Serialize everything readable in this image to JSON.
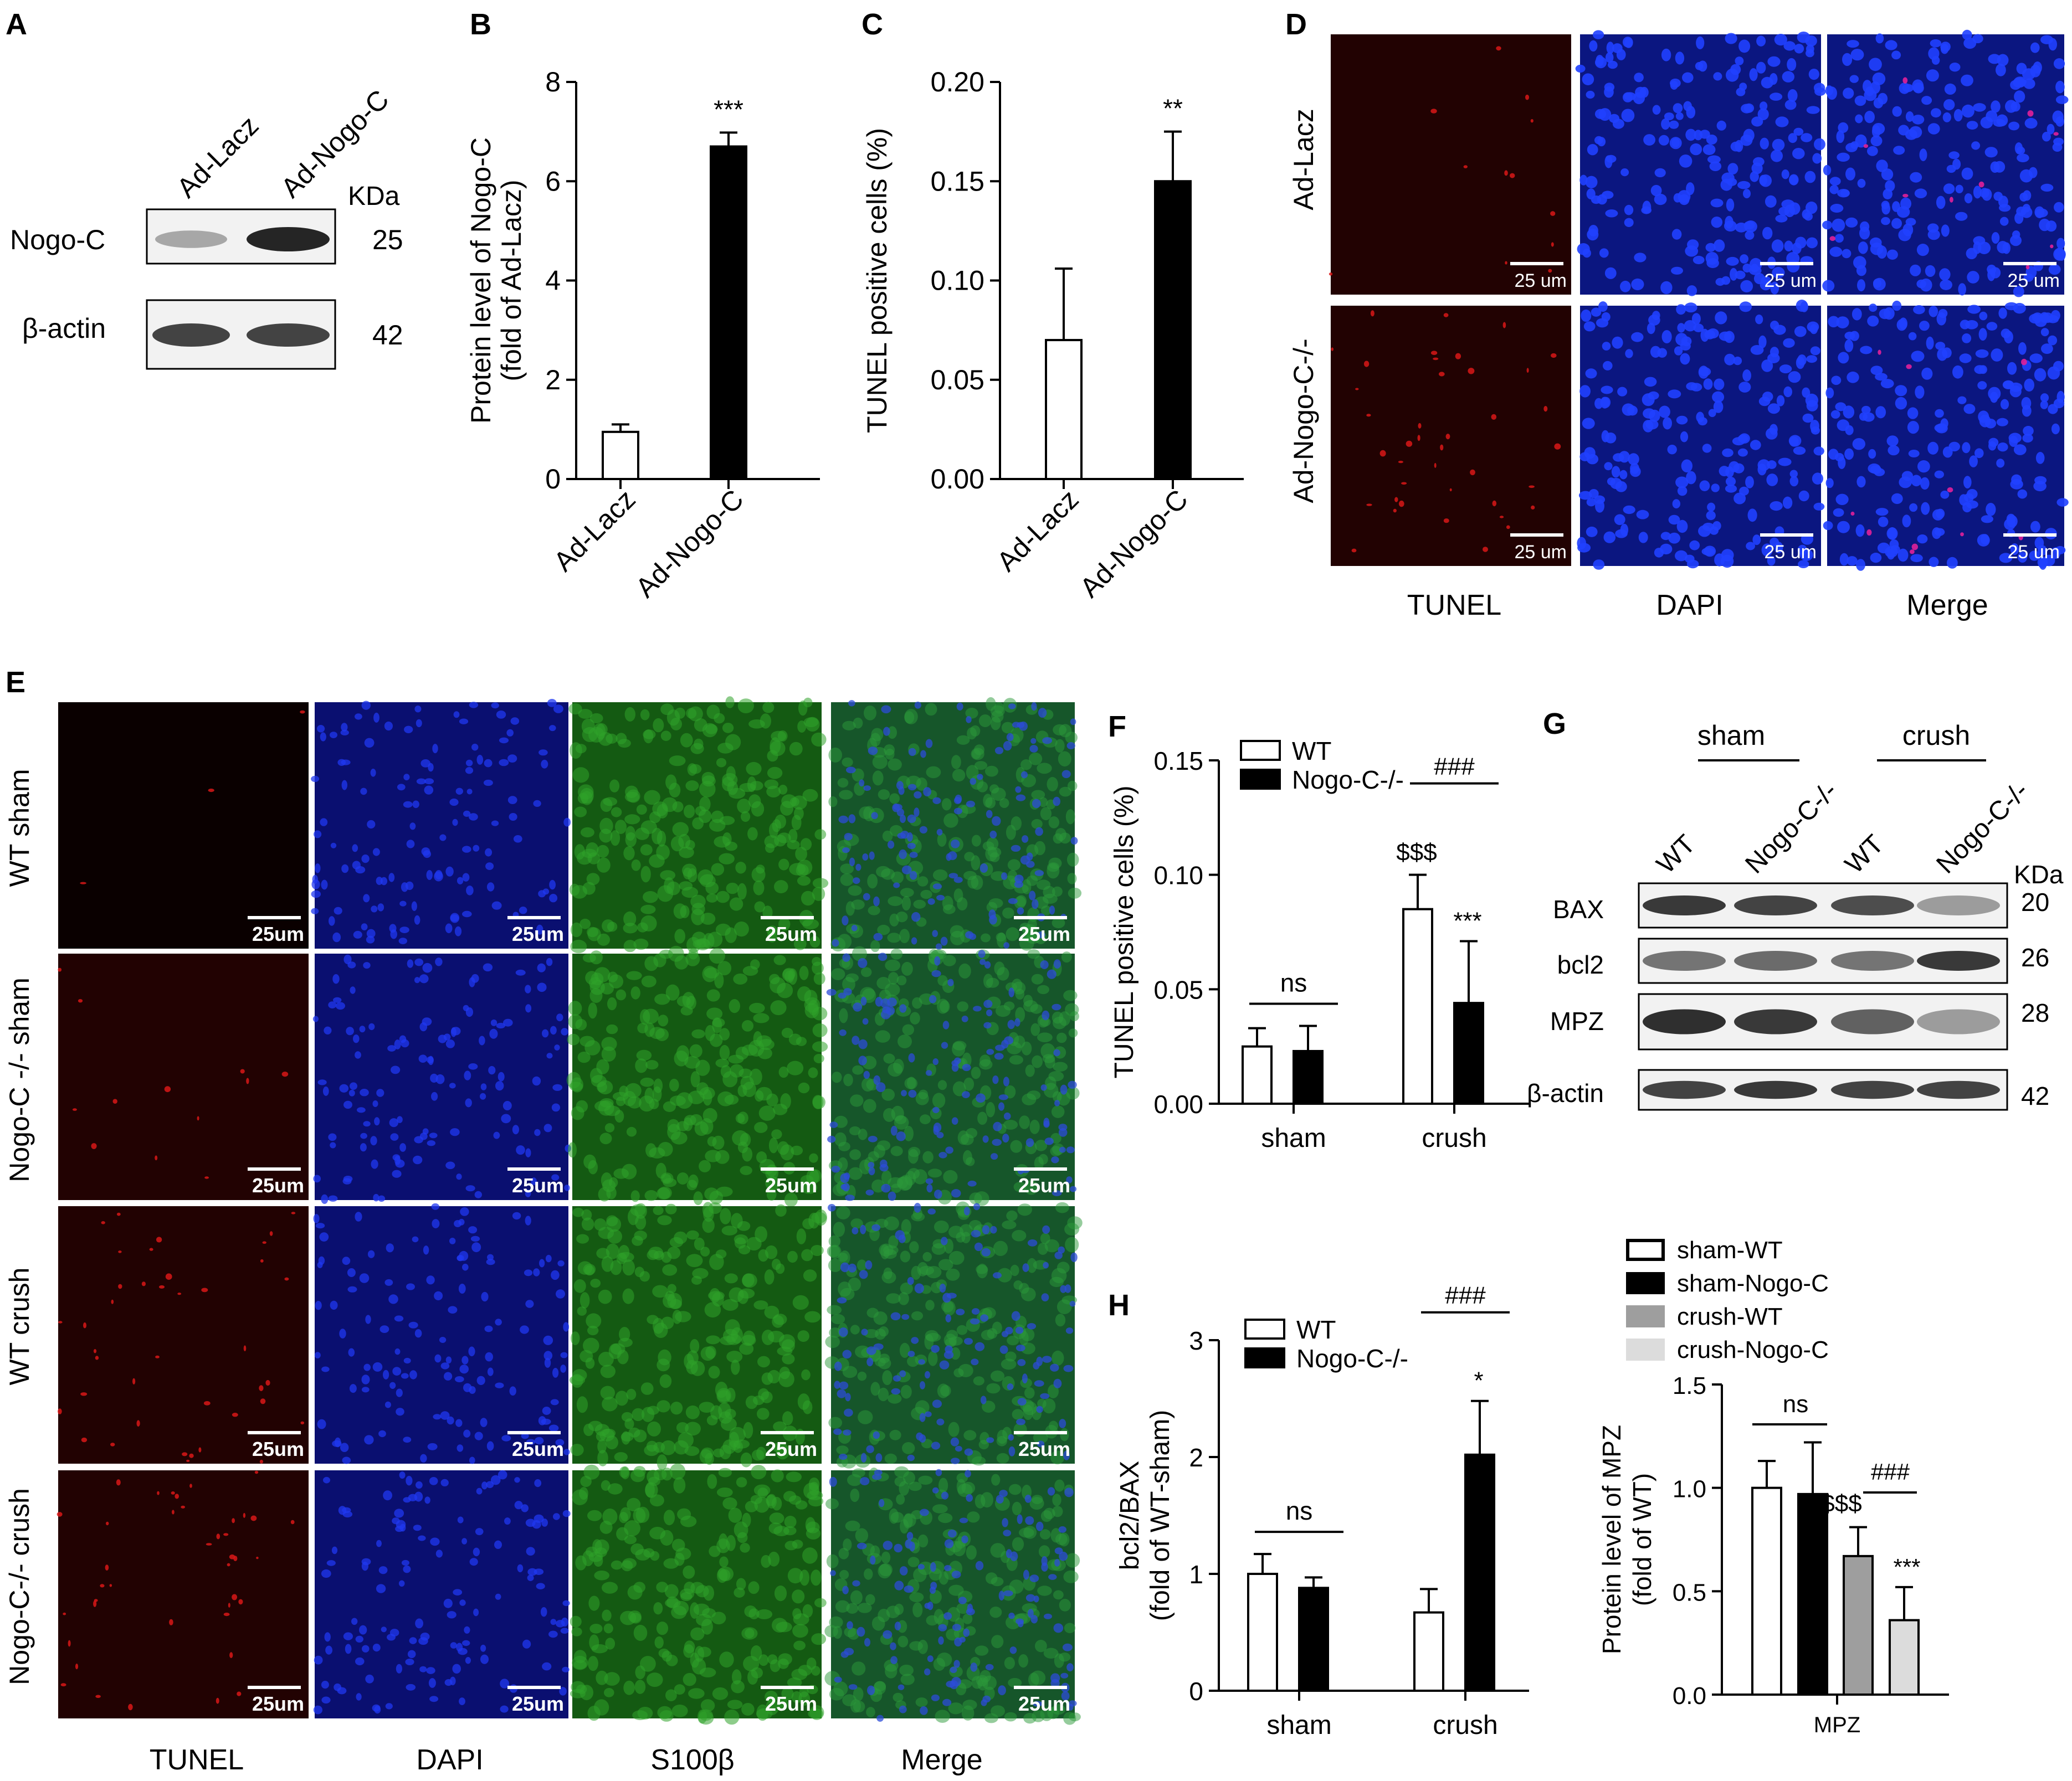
{
  "panel_letters": [
    "A",
    "B",
    "C",
    "D",
    "E",
    "F",
    "G",
    "H"
  ],
  "panelA": {
    "lanes": [
      "Ad-Lacz",
      "Ad-Nogo-C"
    ],
    "kda_label": "KDa",
    "rows": [
      {
        "label": "Nogo-C",
        "kda": "25",
        "band_intensity": [
          0.35,
          1.0
        ]
      },
      {
        "label": "β-actin",
        "kda": "42",
        "band_intensity": [
          0.85,
          0.85
        ]
      }
    ]
  },
  "panelD": {
    "rows": [
      "Ad-Lacz",
      "Ad-Nogo-C-/-"
    ],
    "cols": [
      "TUNEL",
      "DAPI",
      "Merge"
    ],
    "scale_label": "25 um"
  },
  "panelE": {
    "rows": [
      "WT sham",
      "Nogo-C -/- sham",
      "WT crush",
      "Nogo-C-/- crush"
    ],
    "cols": [
      "TUNEL",
      "DAPI",
      "S100β",
      "Merge"
    ],
    "scale_label": "25um"
  },
  "panelG": {
    "groups": [
      "sham",
      "crush"
    ],
    "lanes": [
      "WT",
      "Nogo-C-/-",
      "WT",
      "Nogo-C-/-"
    ],
    "kda_label": "KDa",
    "rows": [
      {
        "label": "BAX",
        "kda": "20",
        "band_intensity": [
          0.9,
          0.85,
          0.8,
          0.4
        ]
      },
      {
        "label": "bcl2",
        "kda": "26",
        "band_intensity": [
          0.6,
          0.65,
          0.6,
          0.9
        ]
      },
      {
        "label": "MPZ",
        "kda": "28",
        "band_intensity": [
          0.95,
          0.9,
          0.7,
          0.4
        ]
      },
      {
        "label": "β-actin",
        "kda": "42",
        "band_intensity": [
          0.85,
          0.9,
          0.85,
          0.85
        ]
      }
    ]
  },
  "chart_data": [
    {
      "id": "B",
      "type": "bar",
      "categories": [
        "Ad-Lacz",
        "Ad-Nogo-C"
      ],
      "values": [
        0.95,
        6.7
      ],
      "errors": [
        0.15,
        0.28
      ],
      "fills": [
        "#ffffff",
        "#000000"
      ],
      "significance": [
        "",
        "***"
      ],
      "ylabel": "Protein level of Nogo-C",
      "ylabel2": "(fold of Ad-Lacz)",
      "ylim": [
        0,
        8
      ],
      "yticks": [
        "0",
        "2",
        "4",
        "6",
        "8"
      ]
    },
    {
      "id": "C",
      "type": "bar",
      "categories": [
        "Ad-Lacz",
        "Ad-Nogo-C"
      ],
      "values": [
        0.07,
        0.15
      ],
      "errors": [
        0.036,
        0.025
      ],
      "fills": [
        "#ffffff",
        "#000000"
      ],
      "significance": [
        "",
        "**"
      ],
      "ylabel": "TUNEL positive cells (%)",
      "ylim": [
        0,
        0.2
      ],
      "yticks": [
        "0.00",
        "0.05",
        "0.10",
        "0.15",
        "0.20"
      ]
    },
    {
      "id": "F",
      "type": "bar",
      "categories": [
        "sham",
        "crush"
      ],
      "series": [
        {
          "name": "WT",
          "values": [
            0.025,
            0.085
          ],
          "errors": [
            0.008,
            0.015
          ],
          "fill": "#ffffff"
        },
        {
          "name": "Nogo-C-/-",
          "values": [
            0.023,
            0.044
          ],
          "errors": [
            0.011,
            0.027
          ],
          "fill": "#000000"
        }
      ],
      "annotations": {
        "ns": "ns",
        "hash": "###",
        "dollar": "$$$",
        "star": "***"
      },
      "ylabel": "TUNEL positive cells (%)",
      "ylim": [
        0,
        0.15
      ],
      "yticks": [
        "0.00",
        "0.05",
        "0.10",
        "0.15"
      ]
    },
    {
      "id": "H1",
      "type": "bar",
      "categories": [
        "sham",
        "crush"
      ],
      "series": [
        {
          "name": "WT",
          "values": [
            1.0,
            0.67
          ],
          "errors": [
            0.17,
            0.2
          ],
          "fill": "#ffffff"
        },
        {
          "name": "Nogo-C-/-",
          "values": [
            0.88,
            2.02
          ],
          "errors": [
            0.09,
            0.46
          ],
          "fill": "#000000"
        }
      ],
      "annotations": {
        "ns": "ns",
        "hash": "###",
        "star": "*"
      },
      "ylabel": "bcl2/BAX",
      "ylabel2": "(fold of WT-sham)",
      "ylim": [
        0,
        3
      ],
      "yticks": [
        "0",
        "1",
        "2",
        "3"
      ]
    },
    {
      "id": "H2",
      "type": "bar",
      "categories": [
        "MPZ"
      ],
      "series": [
        {
          "name": "sham-WT",
          "values": [
            1.0
          ],
          "errors": [
            0.13
          ],
          "fill": "#ffffff"
        },
        {
          "name": "sham-Nogo-C",
          "values": [
            0.97
          ],
          "errors": [
            0.25
          ],
          "fill": "#000000"
        },
        {
          "name": "crush-WT",
          "values": [
            0.67
          ],
          "errors": [
            0.14
          ],
          "fill": "#9e9e9e"
        },
        {
          "name": "crush-Nogo-C",
          "values": [
            0.36
          ],
          "errors": [
            0.16
          ],
          "fill": "#dcdcdc"
        }
      ],
      "annotations": {
        "ns": "ns",
        "hash": "###",
        "dollar": "$$$",
        "star": "***"
      },
      "ylabel": "Protein level of MPZ",
      "ylabel2": "(fold of WT)",
      "ylim": [
        0,
        1.5
      ],
      "yticks": [
        "0.0",
        "0.5",
        "1.0",
        "1.5"
      ]
    }
  ]
}
